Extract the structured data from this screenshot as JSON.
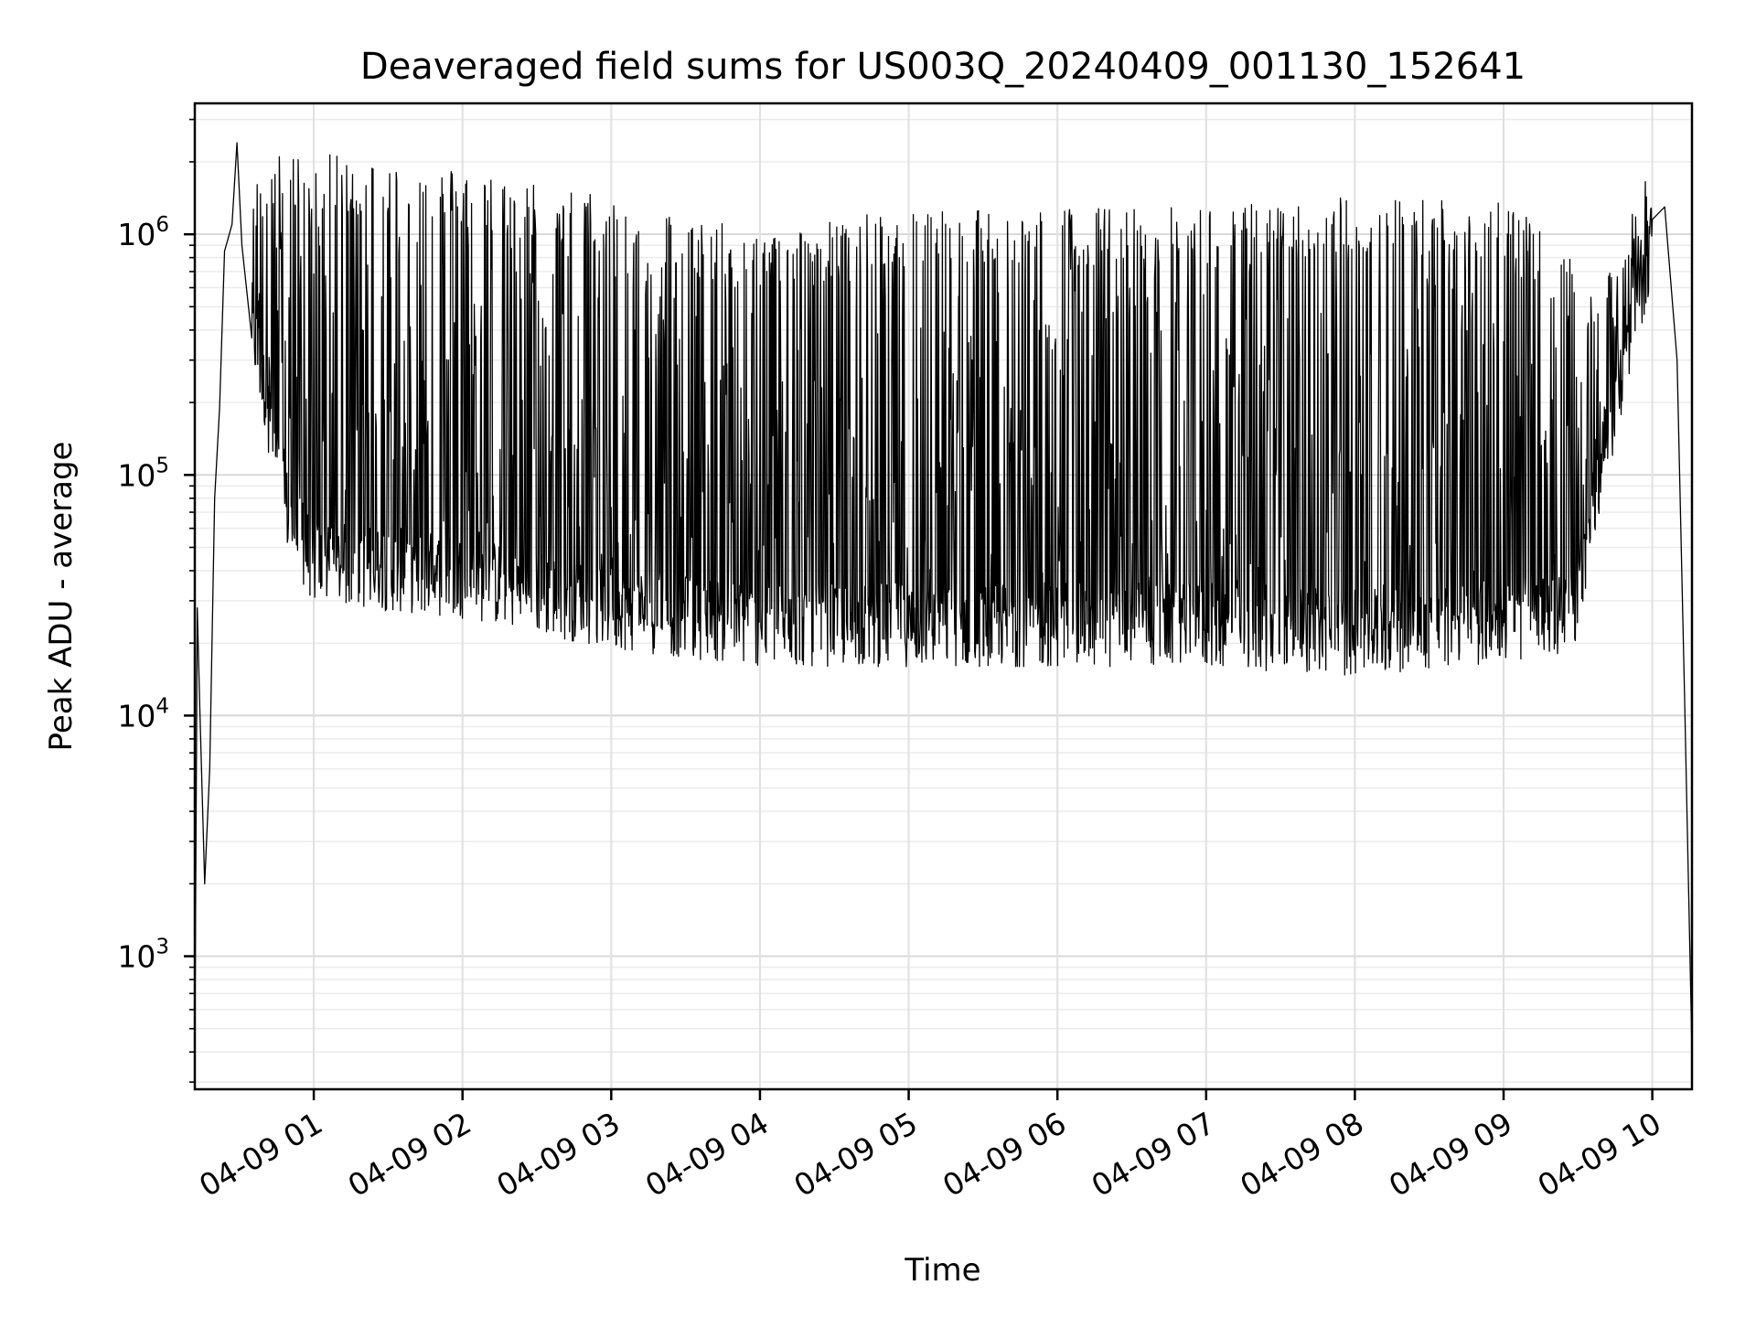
{
  "chart_data": {
    "type": "line",
    "title": "Deaveraged field sums for US003Q_20240409_001130_152641",
    "xlabel": "Time",
    "ylabel": "Peak ADU - average",
    "y_scale": "log",
    "ylim": [
      280,
      3500000
    ],
    "xlim": [
      "2024-04-09 00:12",
      "2024-04-09 10:16"
    ],
    "x_ticks": [
      {
        "time": "2024-04-09 01:00",
        "label": "04-09 01"
      },
      {
        "time": "2024-04-09 02:00",
        "label": "04-09 02"
      },
      {
        "time": "2024-04-09 03:00",
        "label": "04-09 03"
      },
      {
        "time": "2024-04-09 04:00",
        "label": "04-09 04"
      },
      {
        "time": "2024-04-09 05:00",
        "label": "04-09 05"
      },
      {
        "time": "2024-04-09 06:00",
        "label": "04-09 06"
      },
      {
        "time": "2024-04-09 07:00",
        "label": "04-09 07"
      },
      {
        "time": "2024-04-09 08:00",
        "label": "04-09 08"
      },
      {
        "time": "2024-04-09 09:00",
        "label": "04-09 09"
      },
      {
        "time": "2024-04-09 10:00",
        "label": "04-09 10"
      }
    ],
    "y_ticks": [
      {
        "value": 1000,
        "base": "10",
        "exp": "3"
      },
      {
        "value": 10000,
        "base": "10",
        "exp": "4"
      },
      {
        "value": 100000,
        "base": "10",
        "exp": "5"
      },
      {
        "value": 1000000,
        "base": "10",
        "exp": "6"
      }
    ],
    "grid": "major and minor",
    "series_color": "#000000",
    "series": [
      {
        "name": "",
        "points": [
          [
            "2024-04-09 00:12",
            400
          ],
          [
            "2024-04-09 00:13",
            28000
          ],
          [
            "2024-04-09 00:14",
            11000
          ],
          [
            "2024-04-09 00:16",
            2000
          ],
          [
            "2024-04-09 00:18",
            6000
          ],
          [
            "2024-04-09 00:20",
            80000
          ],
          [
            "2024-04-09 00:22",
            190000
          ],
          [
            "2024-04-09 00:24",
            850000
          ],
          [
            "2024-04-09 00:27",
            1100000
          ],
          [
            "2024-04-09 00:29",
            2400000
          ],
          [
            "2024-04-09 00:31",
            900000
          ],
          [
            "2024-04-09 00:35",
            500000
          ],
          [
            "2024-04-09 00:40",
            1600000
          ],
          [
            "2024-04-09 00:50",
            1700000
          ],
          [
            "2024-04-09 01:00",
            1500000
          ],
          [
            "2024-04-09 01:15",
            1800000
          ],
          [
            "2024-04-09 01:30",
            1400000
          ],
          [
            "2024-04-09 02:00",
            1200000
          ],
          [
            "2024-04-09 02:30",
            1200000
          ],
          [
            "2024-04-09 03:00",
            1000000
          ],
          [
            "2024-04-09 03:30",
            900000
          ],
          [
            "2024-04-09 04:00",
            800000
          ],
          [
            "2024-04-09 04:30",
            700000
          ],
          [
            "2024-04-09 05:00",
            1000000
          ],
          [
            "2024-04-09 06:00",
            1000000
          ],
          [
            "2024-04-09 07:00",
            1200000
          ],
          [
            "2024-04-09 08:00",
            1100000
          ],
          [
            "2024-04-09 09:00",
            1100000
          ],
          [
            "2024-04-09 09:30",
            120000
          ],
          [
            "2024-04-09 09:45",
            500000
          ],
          [
            "2024-04-09 10:00",
            1800000
          ],
          [
            "2024-04-09 10:05",
            1300000
          ],
          [
            "2024-04-09 10:10",
            300000
          ],
          [
            "2024-04-09 10:13",
            12000
          ],
          [
            "2024-04-09 10:16",
            400
          ]
        ],
        "envelope_upper": [
          [
            "2024-04-09 00:35",
            1500000
          ],
          [
            "2024-04-09 01:00",
            1500000
          ],
          [
            "2024-04-09 02:00",
            1300000
          ],
          [
            "2024-04-09 03:00",
            1000000
          ],
          [
            "2024-04-09 04:00",
            700000
          ],
          [
            "2024-04-09 05:00",
            900000
          ],
          [
            "2024-04-09 06:00",
            900000
          ],
          [
            "2024-04-09 07:00",
            900000
          ],
          [
            "2024-04-09 08:00",
            1000000
          ],
          [
            "2024-04-09 09:00",
            1000000
          ],
          [
            "2024-04-09 09:40",
            400000
          ],
          [
            "2024-04-09 10:00",
            1400000
          ]
        ],
        "envelope_lower": [
          [
            "2024-04-09 00:35",
            400000
          ],
          [
            "2024-04-09 00:50",
            60000
          ],
          [
            "2024-04-09 01:00",
            40000
          ],
          [
            "2024-04-09 02:00",
            35000
          ],
          [
            "2024-04-09 03:00",
            26000
          ],
          [
            "2024-04-09 04:00",
            22000
          ],
          [
            "2024-04-09 05:00",
            22000
          ],
          [
            "2024-04-09 06:00",
            22000
          ],
          [
            "2024-04-09 07:00",
            22000
          ],
          [
            "2024-04-09 08:00",
            20000
          ],
          [
            "2024-04-09 09:00",
            23000
          ],
          [
            "2024-04-09 09:28",
            24000
          ],
          [
            "2024-04-09 09:35",
            60000
          ],
          [
            "2024-04-09 09:50",
            300000
          ],
          [
            "2024-04-09 10:00",
            900000
          ]
        ]
      }
    ]
  }
}
